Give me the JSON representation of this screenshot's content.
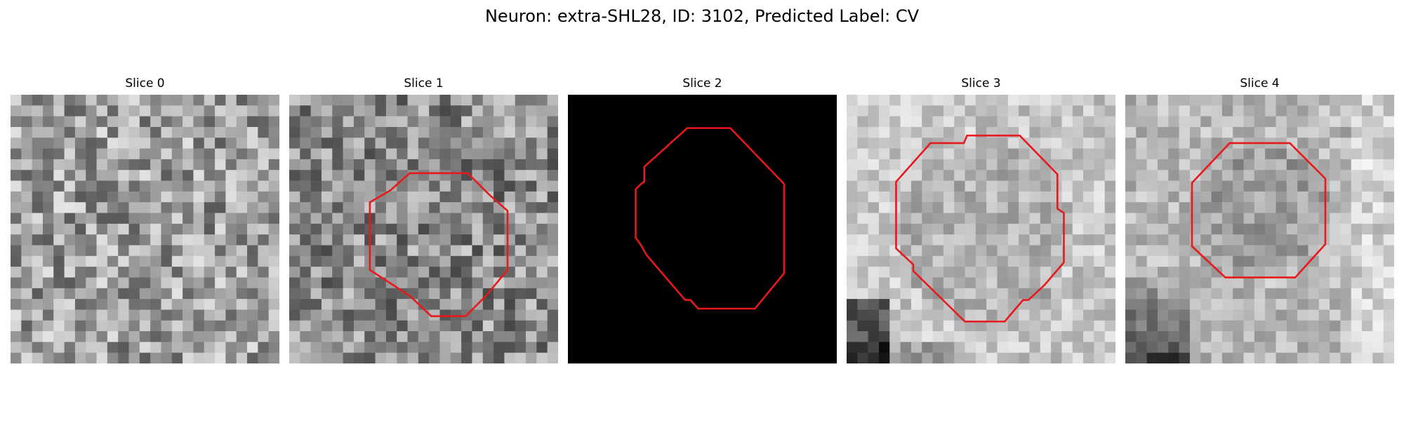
{
  "figure": {
    "title": "Neuron: extra-SHL28, ID: 3102, Predicted Label: CV",
    "contour_color": "#e8191b"
  },
  "panels": [
    {
      "title": "Slice 0",
      "kind": "noise",
      "tone": "mid",
      "seed": 11,
      "contour": []
    },
    {
      "title": "Slice 1",
      "kind": "noise",
      "tone": "dark-mid",
      "seed": 23,
      "contour": [
        [
          13.2,
          7.3
        ],
        [
          16.6,
          7.3
        ],
        [
          18.6,
          9.3
        ],
        [
          20.3,
          10.8
        ],
        [
          20.3,
          16.3
        ],
        [
          18.3,
          18.7
        ],
        [
          16.4,
          20.6
        ],
        [
          13.2,
          20.6
        ],
        [
          11.2,
          18.7
        ],
        [
          7.5,
          16.3
        ],
        [
          7.5,
          10.0
        ],
        [
          9.4,
          8.9
        ],
        [
          11.2,
          7.3
        ]
      ]
    },
    {
      "title": "Slice 2",
      "kind": "black",
      "tone": "black",
      "seed": 0,
      "contour": [
        [
          11.1,
          3.1
        ],
        [
          15.1,
          3.1
        ],
        [
          20.1,
          8.3
        ],
        [
          20.1,
          16.6
        ],
        [
          17.4,
          19.9
        ],
        [
          12.1,
          19.9
        ],
        [
          11.4,
          19.1
        ],
        [
          10.9,
          19.1
        ],
        [
          7.3,
          14.9
        ],
        [
          6.8,
          14.0
        ],
        [
          6.3,
          13.3
        ],
        [
          6.3,
          8.8
        ],
        [
          6.8,
          8.3
        ],
        [
          7.1,
          8.1
        ],
        [
          7.1,
          6.7
        ]
      ]
    },
    {
      "title": "Slice 3",
      "kind": "noise",
      "tone": "light-blob",
      "seed": 37,
      "contour": [
        [
          7.8,
          4.5
        ],
        [
          10.9,
          4.5
        ],
        [
          11.2,
          3.8
        ],
        [
          16.1,
          3.8
        ],
        [
          19.6,
          7.4
        ],
        [
          19.6,
          10.6
        ],
        [
          20.2,
          11.0
        ],
        [
          20.2,
          15.6
        ],
        [
          18.4,
          17.7
        ],
        [
          16.9,
          19.1
        ],
        [
          16.4,
          19.1
        ],
        [
          14.7,
          21.1
        ],
        [
          11.0,
          21.1
        ],
        [
          6.2,
          16.4
        ],
        [
          6.2,
          15.8
        ],
        [
          4.6,
          14.3
        ],
        [
          4.6,
          8.1
        ]
      ]
    },
    {
      "title": "Slice 4",
      "kind": "noise",
      "tone": "light-blob2",
      "seed": 53,
      "contour": [
        [
          9.7,
          4.5
        ],
        [
          15.3,
          4.5
        ],
        [
          18.6,
          7.8
        ],
        [
          18.6,
          13.9
        ],
        [
          15.8,
          17.0
        ],
        [
          9.3,
          17.0
        ],
        [
          6.2,
          14.1
        ],
        [
          6.2,
          8.2
        ]
      ]
    }
  ]
}
